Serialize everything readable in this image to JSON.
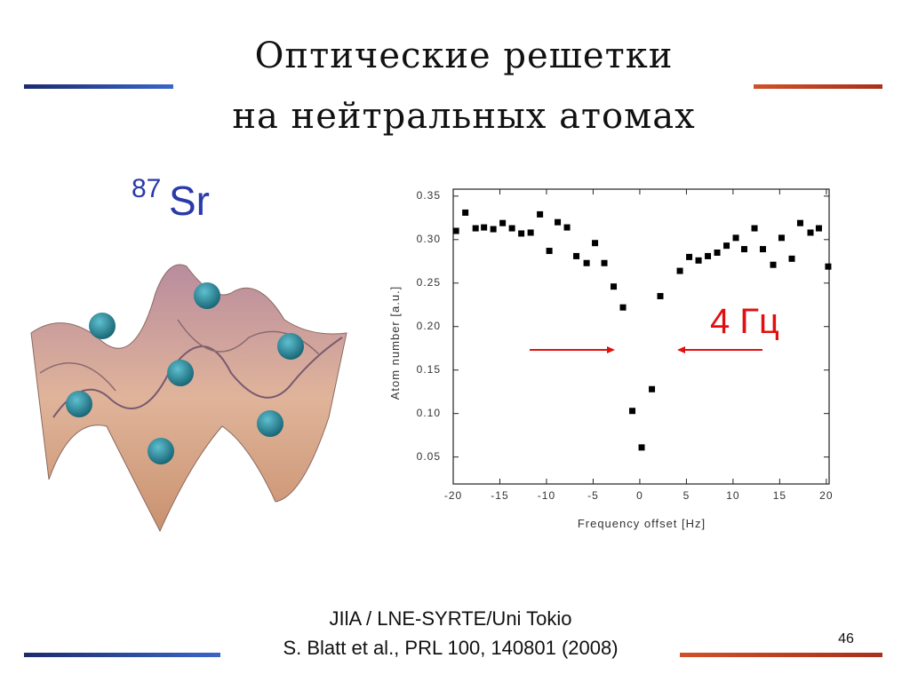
{
  "slide": {
    "title_line1": "Оптические решетки",
    "title_line2": "на нейтральных атомах",
    "isotope_mass": "87",
    "isotope_symbol": "Sr",
    "credit_line1": "JIlA / LNE-SYRTE/Uni Tokio",
    "credit_line2": "S. Blatt et al.,  PRL 100, 140801 (2008)",
    "page_number": "46"
  },
  "chart_data": {
    "type": "scatter",
    "xlabel": "Frequency offset [Hz]",
    "ylabel": "Atom number [a.u.]",
    "annotation": "4 Гц",
    "color": "#000000",
    "x": [
      -19.7,
      -18.7,
      -17.6,
      -16.7,
      -15.7,
      -14.7,
      -13.7,
      -12.7,
      -11.7,
      -10.7,
      -9.7,
      -8.8,
      -7.8,
      -6.8,
      -5.7,
      -4.8,
      -3.8,
      -2.8,
      -1.8,
      -0.8,
      0.2,
      1.3,
      2.2,
      4.3,
      5.3,
      6.3,
      7.3,
      8.3,
      9.3,
      10.3,
      11.2,
      12.3,
      13.2,
      14.3,
      15.2,
      16.3,
      17.2,
      18.3,
      19.2,
      20.2
    ],
    "values": [
      0.31,
      0.331,
      0.313,
      0.314,
      0.312,
      0.319,
      0.313,
      0.307,
      0.308,
      0.329,
      0.287,
      0.32,
      0.314,
      0.281,
      0.273,
      0.296,
      0.273,
      0.246,
      0.222,
      0.103,
      0.061,
      0.128,
      0.235,
      0.264,
      0.28,
      0.276,
      0.281,
      0.285,
      0.293,
      0.302,
      0.289,
      0.313,
      0.289,
      0.271,
      0.302,
      0.278,
      0.319,
      0.308,
      0.313,
      0.269
    ],
    "xlim": [
      -20,
      20.3
    ],
    "ylim": [
      0.019,
      0.358
    ],
    "xticks": [
      -20,
      -15,
      -10,
      -5,
      0,
      5,
      10,
      15,
      20
    ],
    "yticks": [
      0.05,
      {
        "value": 0.1,
        "label": "0.10"
      },
      0.15,
      {
        "value": 0.2,
        "label": "0.20"
      },
      0.25,
      {
        "value": 0.3,
        "label": "0.30"
      },
      0.35
    ]
  }
}
